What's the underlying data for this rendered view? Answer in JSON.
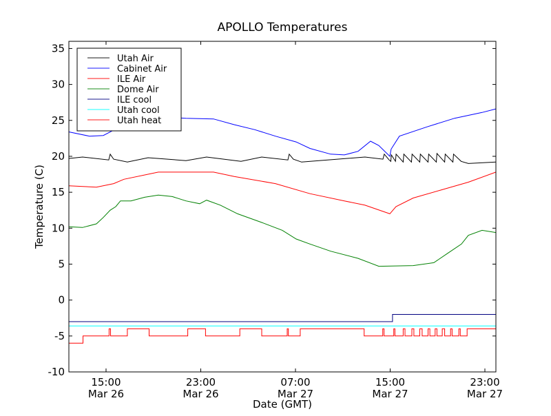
{
  "chart_data": {
    "type": "line",
    "title": "APOLLO Temperatures",
    "xlabel": "Date (GMT)",
    "ylabel": "Temperature (C)",
    "x_units": "hours since Mar 26 00:00 GMT",
    "xlim": [
      11.86,
      47.93
    ],
    "ylim": [
      -10,
      36
    ],
    "yticks": [
      -10,
      -5,
      0,
      5,
      10,
      15,
      20,
      25,
      30,
      35
    ],
    "xticks": [
      {
        "x": 15,
        "time": "15:00",
        "date": "Mar 26"
      },
      {
        "x": 23,
        "time": "23:00",
        "date": "Mar 26"
      },
      {
        "x": 31,
        "time": "07:00",
        "date": "Mar 27"
      },
      {
        "x": 39,
        "time": "15:00",
        "date": "Mar 27"
      },
      {
        "x": 47,
        "time": "23:00",
        "date": "Mar 27"
      }
    ],
    "legend_position": "top-left",
    "series": [
      {
        "name": "Utah Air",
        "color": "#000000",
        "kind": "line",
        "points": [
          [
            11.86,
            19.7
          ],
          [
            13.02,
            19.9
          ],
          [
            15.23,
            19.5
          ],
          [
            15.35,
            20.3
          ],
          [
            15.64,
            19.6
          ],
          [
            16.8,
            19.2
          ],
          [
            18.55,
            19.8
          ],
          [
            21.75,
            19.4
          ],
          [
            23.49,
            19.9
          ],
          [
            26.4,
            19.3
          ],
          [
            28.15,
            19.9
          ],
          [
            30.36,
            19.5
          ],
          [
            30.47,
            20.3
          ],
          [
            30.82,
            19.6
          ],
          [
            31.52,
            19.2
          ],
          [
            36.87,
            19.9
          ],
          [
            38.39,
            19.6
          ],
          [
            38.5,
            20.3
          ],
          [
            38.91,
            19.5
          ],
          [
            39.05,
            19.3
          ],
          [
            39.1,
            20.2
          ],
          [
            39.45,
            19.3
          ],
          [
            39.5,
            20.3
          ],
          [
            40.1,
            19.2
          ],
          [
            40.15,
            20.3
          ],
          [
            40.8,
            19.2
          ],
          [
            40.85,
            20.3
          ],
          [
            41.5,
            19.2
          ],
          [
            41.55,
            20.3
          ],
          [
            42.2,
            19.2
          ],
          [
            42.25,
            20.3
          ],
          [
            42.9,
            19.2
          ],
          [
            42.95,
            20.4
          ],
          [
            43.6,
            19.2
          ],
          [
            43.65,
            20.3
          ],
          [
            44.3,
            19.2
          ],
          [
            44.35,
            20.3
          ],
          [
            45.0,
            19.3
          ],
          [
            45.6,
            19.0
          ],
          [
            47.93,
            19.2
          ]
        ]
      },
      {
        "name": "Cabinet Air",
        "color": "#0000ff",
        "kind": "line",
        "points": [
          [
            11.86,
            23.4
          ],
          [
            13.6,
            22.8
          ],
          [
            14.77,
            22.9
          ],
          [
            15.93,
            23.9
          ],
          [
            17.68,
            25.3
          ],
          [
            19.42,
            25.5
          ],
          [
            21.75,
            25.3
          ],
          [
            24.08,
            25.2
          ],
          [
            25.82,
            24.4
          ],
          [
            27.57,
            23.7
          ],
          [
            29.31,
            22.8
          ],
          [
            31.06,
            22.0
          ],
          [
            32.22,
            21.1
          ],
          [
            33.97,
            20.3
          ],
          [
            35.13,
            20.2
          ],
          [
            36.29,
            20.7
          ],
          [
            37.34,
            22.1
          ],
          [
            38.04,
            21.5
          ],
          [
            38.97,
            20.0
          ],
          [
            39.08,
            21.0
          ],
          [
            39.78,
            22.8
          ],
          [
            42.11,
            24.1
          ],
          [
            44.44,
            25.3
          ],
          [
            46.76,
            26.1
          ],
          [
            47.93,
            26.6
          ]
        ]
      },
      {
        "name": "ILE Air",
        "color": "#ff0000",
        "kind": "line",
        "points": [
          [
            11.86,
            15.9
          ],
          [
            14.19,
            15.7
          ],
          [
            15.64,
            16.2
          ],
          [
            16.51,
            16.8
          ],
          [
            19.42,
            17.8
          ],
          [
            21.75,
            17.8
          ],
          [
            24.08,
            17.8
          ],
          [
            25.82,
            17.2
          ],
          [
            29.31,
            16.2
          ],
          [
            32.22,
            14.8
          ],
          [
            35.13,
            13.8
          ],
          [
            36.87,
            13.2
          ],
          [
            38.97,
            12.0
          ],
          [
            39.49,
            13.0
          ],
          [
            40.94,
            14.2
          ],
          [
            43.27,
            15.3
          ],
          [
            45.6,
            16.4
          ],
          [
            47.93,
            17.8
          ]
        ]
      },
      {
        "name": "Dome Air",
        "color": "#008000",
        "kind": "line",
        "points": [
          [
            11.86,
            10.2
          ],
          [
            13.02,
            10.1
          ],
          [
            14.19,
            10.6
          ],
          [
            14.77,
            11.5
          ],
          [
            15.35,
            12.5
          ],
          [
            15.82,
            13.0
          ],
          [
            16.22,
            13.8
          ],
          [
            17.1,
            13.8
          ],
          [
            18.26,
            14.3
          ],
          [
            19.42,
            14.6
          ],
          [
            20.59,
            14.4
          ],
          [
            21.75,
            13.8
          ],
          [
            22.91,
            13.4
          ],
          [
            23.49,
            13.9
          ],
          [
            24.66,
            13.2
          ],
          [
            26.11,
            12.0
          ],
          [
            28.15,
            10.8
          ],
          [
            29.89,
            9.7
          ],
          [
            31.06,
            8.5
          ],
          [
            32.22,
            7.8
          ],
          [
            33.97,
            6.8
          ],
          [
            36.29,
            5.8
          ],
          [
            38.04,
            4.7
          ],
          [
            40.94,
            4.8
          ],
          [
            42.69,
            5.2
          ],
          [
            43.85,
            6.5
          ],
          [
            45.02,
            7.8
          ],
          [
            45.6,
            9.0
          ],
          [
            46.76,
            9.7
          ],
          [
            47.93,
            9.4
          ]
        ]
      },
      {
        "name": "ILE cool",
        "color": "#000080",
        "kind": "step",
        "points": [
          [
            11.86,
            -3
          ],
          [
            39.2,
            -2
          ],
          [
            47.93,
            -2
          ]
        ]
      },
      {
        "name": "Utah cool",
        "color": "#00ffff",
        "kind": "step",
        "points": [
          [
            11.86,
            -3.6
          ],
          [
            47.93,
            -3.6
          ]
        ]
      },
      {
        "name": "Utah heat",
        "color": "#ff0000",
        "kind": "step",
        "points": [
          [
            11.86,
            -6
          ],
          [
            13.05,
            -5
          ],
          [
            15.26,
            -4
          ],
          [
            15.38,
            -5
          ],
          [
            16.8,
            -4
          ],
          [
            18.64,
            -5
          ],
          [
            21.9,
            -4
          ],
          [
            23.4,
            -5
          ],
          [
            26.3,
            -4
          ],
          [
            28.15,
            -5
          ],
          [
            30.3,
            -4
          ],
          [
            30.4,
            -5
          ],
          [
            31.4,
            -4
          ],
          [
            36.8,
            -5
          ],
          [
            38.37,
            -4
          ],
          [
            38.48,
            -5
          ],
          [
            39.3,
            -4
          ],
          [
            39.4,
            -5
          ],
          [
            40.1,
            -4
          ],
          [
            40.25,
            -5
          ],
          [
            40.83,
            -4
          ],
          [
            41.0,
            -5
          ],
          [
            41.5,
            -4
          ],
          [
            41.7,
            -5
          ],
          [
            42.2,
            -4
          ],
          [
            42.35,
            -5
          ],
          [
            42.8,
            -4
          ],
          [
            42.95,
            -5
          ],
          [
            43.4,
            -4
          ],
          [
            43.6,
            -5
          ],
          [
            44.1,
            -4
          ],
          [
            44.23,
            -5
          ],
          [
            44.8,
            -4
          ],
          [
            44.92,
            -5
          ],
          [
            45.5,
            -4
          ],
          [
            47.93,
            -4
          ]
        ]
      }
    ]
  }
}
